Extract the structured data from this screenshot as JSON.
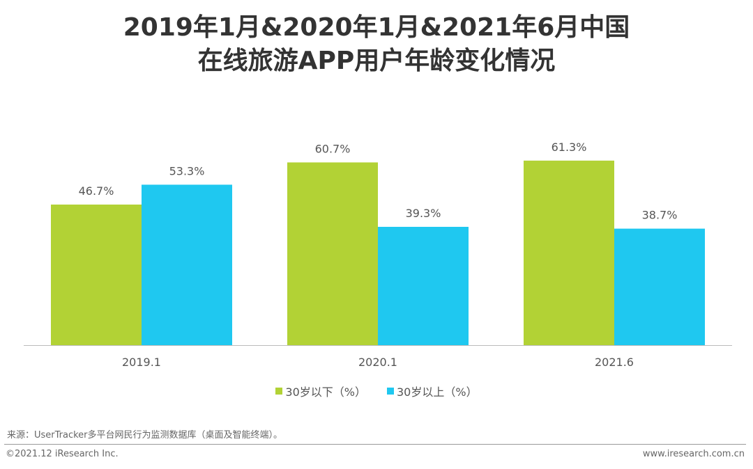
{
  "chart_data": {
    "type": "bar",
    "title": "2019年1月&2020年1月&2021年6月中国在线旅游APP用户年龄变化情况",
    "title_lines": [
      "2019年1月&2020年1月&2021年6月中国",
      "在线旅游APP用户年龄变化情况"
    ],
    "categories": [
      "2019.1",
      "2020.1",
      "2021.6"
    ],
    "series": [
      {
        "name": "30岁以下（%）",
        "color": "#b2d235",
        "values": [
          46.7,
          60.7,
          61.3
        ],
        "labels": [
          "46.7%",
          "60.7%",
          "61.3%"
        ]
      },
      {
        "name": "30岁以上（%）",
        "color": "#1fc8f0",
        "values": [
          53.3,
          39.3,
          38.7
        ],
        "labels": [
          "53.3%",
          "39.3%",
          "38.7%"
        ]
      }
    ],
    "xlabel": "",
    "ylabel": "",
    "ylim": [
      0,
      70
    ],
    "grid": false,
    "legend_position": "bottom"
  },
  "footer": {
    "source": "来源：UserTracker多平台网民行为监测数据库（桌面及智能终端）。",
    "copyright": "©2021.12 iResearch Inc.",
    "website": "www.iresearch.com.cn"
  }
}
